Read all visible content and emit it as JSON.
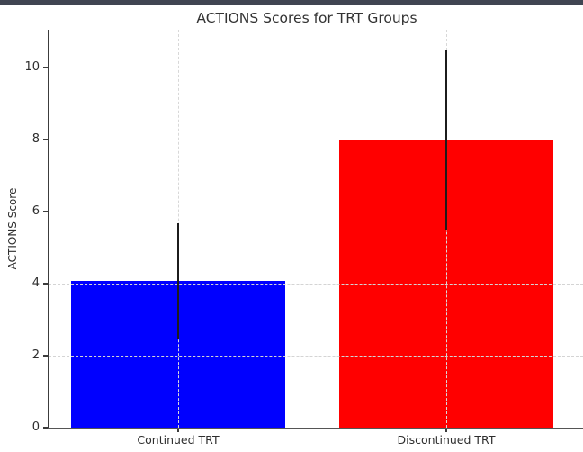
{
  "window": {
    "top_bar_color": "#404552"
  },
  "chart_data": {
    "type": "bar",
    "title": "ACTIONS Scores for TRT Groups",
    "xlabel": "",
    "ylabel": "ACTIONS Score",
    "categories": [
      "Continued TRT",
      "Discontinued TRT"
    ],
    "values": [
      4.07,
      8.0
    ],
    "errors": [
      1.6,
      2.5
    ],
    "error_ranges": [
      [
        2.47,
        5.67
      ],
      [
        5.5,
        10.5
      ]
    ],
    "bar_colors": [
      "#0000ff",
      "#ff0000"
    ],
    "error_bar_color": "#1c1c1c",
    "yticks": [
      0,
      2,
      4,
      6,
      8,
      10
    ],
    "ylim": [
      0,
      11.05
    ],
    "grid": "dashed horizontal and vertical gridlines, drawn over bars",
    "grid_color": "#d4d4d4",
    "axis_color": "#3c3c3c",
    "text_color": "#2e2e2e",
    "legend": "none"
  }
}
